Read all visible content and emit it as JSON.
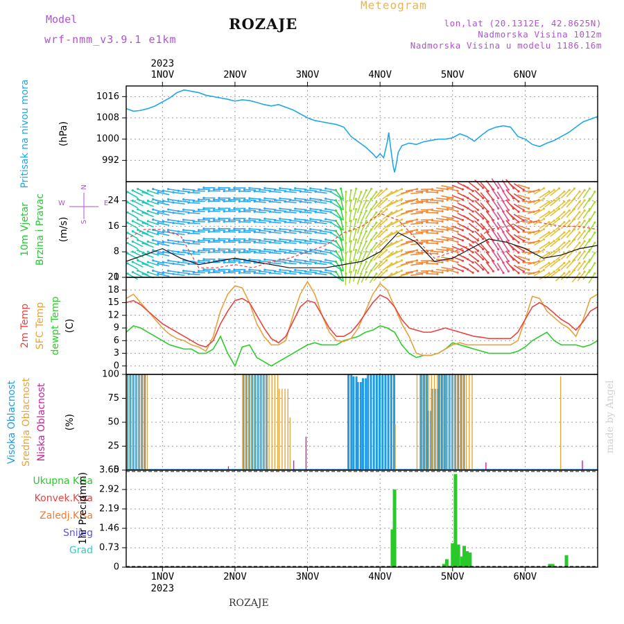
{
  "header": {
    "model_label": "Model",
    "model_name": "wrf-nmm_v3.9.1  e1km",
    "title": "ROZAJE",
    "meteogram": "Meteogram",
    "lonlat": "lon,lat (20.1312E, 42.8625N)",
    "elevation": "Nadmorska Visina 1012m",
    "model_elevation": "Nadmorska Visina u modelu 1186.16m",
    "footer_title": "ROZAJE",
    "watermark": "made by Angel"
  },
  "colors": {
    "pressure": "#1fa7e6",
    "wind_label": "#22c933",
    "temp2m": "#e8433f",
    "sfc": "#e6a23c",
    "dew": "#2ccc2a",
    "high_cloud": "#1e9be5",
    "mid_cloud": "#e8a43c",
    "low_cloud": "#cc1f9a",
    "precip_total": "#2ac92a",
    "conv": "#e8433f",
    "frozen": "#f07a32",
    "snow": "#5c56e0",
    "hail": "#3cc9c0",
    "header_purple": "#b24fd6",
    "meteogram": "#e6b45a"
  },
  "chart_data": [
    {
      "type": "line",
      "panel": "pressure",
      "labels": [
        "Pritisak na nivou mora",
        "(hPa)"
      ],
      "ylim": [
        984,
        1020
      ],
      "yticks": [
        992,
        1000,
        1008,
        1016
      ],
      "x": [
        0,
        0.1,
        0.2,
        0.3,
        0.4,
        0.5,
        0.6,
        0.65,
        0.7,
        0.8,
        0.9,
        1.0,
        1.1,
        1.2,
        1.3,
        1.4,
        1.5,
        1.6,
        1.7,
        1.8,
        1.9,
        2.0,
        2.1,
        2.2,
        2.3,
        2.4,
        2.5,
        2.6,
        2.7,
        2.8,
        2.9,
        3.0,
        3.1,
        3.2,
        3.3,
        3.4,
        3.45,
        3.5,
        3.55,
        3.6,
        3.62,
        3.65,
        3.68,
        3.7,
        3.72,
        3.75,
        3.8,
        3.9,
        4.0,
        4.1,
        4.2,
        4.3,
        4.4,
        4.5,
        4.6,
        4.7,
        4.8,
        4.9,
        5.0,
        5.1,
        5.2,
        5.3,
        5.4,
        5.5,
        5.6,
        5.7,
        5.8,
        5.9,
        6.0,
        6.1,
        6.2,
        6.3,
        6.4,
        6.5
      ],
      "series": [
        {
          "values": [
            1011.5,
            1010.5,
            1010.8,
            1011.5,
            1012.5,
            1014,
            1015.5,
            1016.5,
            1017.5,
            1018.5,
            1018,
            1017.5,
            1016.5,
            1016,
            1015.5,
            1015,
            1014.3,
            1014.8,
            1014.5,
            1013.8,
            1013,
            1012.5,
            1013,
            1012,
            1011,
            1009.5,
            1008,
            1007,
            1006.5,
            1006,
            1005.5,
            1004.5,
            1001,
            999,
            997,
            994.5,
            993,
            994.5,
            993,
            999,
            1002.5,
            996,
            990,
            987.5,
            990,
            995,
            997.5,
            998.5,
            998,
            999,
            999.5,
            1000,
            1000,
            1000.5,
            1002,
            1001,
            999.2,
            1001.5,
            1003.5,
            1004.5,
            1005,
            1004.5,
            1001,
            1000,
            998,
            997.2,
            998.5,
            999.5,
            1001,
            1002.5,
            1004.5,
            1006.5,
            1007.5,
            1008.5
          ]
        }
      ]
    },
    {
      "type": "line",
      "panel": "wind",
      "labels": [
        "10m Vjetar",
        "Brzina i Pravac",
        "(m/s)"
      ],
      "compass": [
        "N",
        "W",
        "E",
        "S"
      ],
      "ylim": [
        0,
        30
      ],
      "yticks": [
        0,
        8,
        16,
        24
      ],
      "x": [
        0,
        0.25,
        0.5,
        0.75,
        1.0,
        1.25,
        1.5,
        1.75,
        2.0,
        2.25,
        2.5,
        2.75,
        3.0,
        3.25,
        3.5,
        3.75,
        4.0,
        4.25,
        4.5,
        4.75,
        5.0,
        5.25,
        5.5,
        5.75,
        6.0,
        6.25,
        6.5
      ],
      "series": [
        {
          "name": "speed",
          "values": [
            5,
            7,
            9,
            6,
            4,
            5,
            6,
            5,
            4,
            3,
            3,
            3,
            4,
            5,
            8,
            14,
            11,
            5,
            6,
            9,
            12,
            11,
            9,
            6,
            7,
            9,
            10
          ]
        },
        {
          "name": "gust",
          "values": [
            12,
            15,
            15,
            13,
            3,
            3,
            4,
            3,
            5,
            6,
            8,
            10,
            14,
            16,
            20,
            18,
            12,
            6,
            8,
            10,
            15,
            16,
            18,
            17,
            16,
            16,
            15
          ]
        },
        {
          "name": "direction_deg",
          "values": [
            120,
            110,
            100,
            95,
            90,
            90,
            90,
            95,
            95,
            95,
            95,
            100,
            180,
            200,
            220,
            240,
            260,
            270,
            280,
            300,
            320,
            330,
            300,
            240,
            230,
            220,
            210
          ]
        }
      ]
    },
    {
      "type": "line",
      "panel": "temperature",
      "labels": [
        "2m Temp",
        "SFC Temp",
        "dewpt Temp",
        "(C)"
      ],
      "ylim": [
        -2,
        21
      ],
      "yticks": [
        0,
        3,
        6,
        9,
        12,
        15,
        18,
        21
      ],
      "x": [
        0,
        0.1,
        0.2,
        0.3,
        0.4,
        0.5,
        0.6,
        0.7,
        0.8,
        0.9,
        1.0,
        1.1,
        1.2,
        1.3,
        1.4,
        1.5,
        1.6,
        1.7,
        1.8,
        1.9,
        2.0,
        2.1,
        2.2,
        2.3,
        2.4,
        2.5,
        2.6,
        2.7,
        2.8,
        2.9,
        3.0,
        3.1,
        3.2,
        3.3,
        3.4,
        3.5,
        3.6,
        3.7,
        3.8,
        3.9,
        4.0,
        4.1,
        4.2,
        4.3,
        4.4,
        4.5,
        4.6,
        4.7,
        4.8,
        4.9,
        5.0,
        5.1,
        5.2,
        5.3,
        5.4,
        5.5,
        5.6,
        5.7,
        5.8,
        5.9,
        6.0,
        6.1,
        6.2,
        6.3,
        6.4,
        6.5
      ],
      "series": [
        {
          "name": "2m Temp",
          "values": [
            15,
            15.5,
            14.5,
            13,
            11.5,
            10,
            9,
            8,
            7,
            6,
            5,
            4.5,
            6,
            10,
            13,
            15.5,
            16,
            15,
            12,
            9,
            6.5,
            5.5,
            7,
            10.5,
            14,
            15.5,
            15,
            12,
            9,
            7,
            7,
            8,
            10,
            12.5,
            15,
            16.8,
            16,
            14,
            11,
            9,
            8.5,
            8,
            8,
            8.5,
            9,
            8.5,
            8,
            7.5,
            7,
            6.8,
            6.5,
            6.5,
            6.5,
            6.5,
            8,
            11,
            14,
            15,
            14,
            12.5,
            11,
            10,
            8.5,
            10.5,
            13,
            14
          ]
        },
        {
          "name": "SFC Temp",
          "values": [
            16,
            17,
            15,
            13,
            11,
            9,
            7.5,
            6.5,
            6,
            5,
            4.5,
            3.5,
            7,
            13,
            17,
            19,
            18.5,
            15,
            10,
            7,
            5,
            5,
            6,
            12,
            17,
            20,
            17,
            12,
            8,
            6,
            5.8,
            6.5,
            9,
            13,
            17,
            19.5,
            18,
            14,
            10,
            7,
            3,
            2.5,
            2.5,
            3,
            4,
            5,
            5.5,
            5,
            5,
            5,
            5,
            5,
            5,
            5,
            6,
            11,
            16.5,
            16,
            13,
            11.5,
            10,
            9,
            7,
            11,
            16,
            17
          ]
        },
        {
          "name": "dewpt Temp",
          "values": [
            8,
            9.5,
            9,
            8,
            7,
            6,
            5,
            4.5,
            4,
            4,
            3,
            3,
            4,
            7,
            3,
            0,
            4.5,
            5,
            2,
            1,
            0,
            1,
            2,
            3,
            4,
            5,
            5.5,
            5,
            5,
            5,
            6,
            6.5,
            7,
            8,
            8.5,
            9.5,
            9,
            8,
            5,
            3,
            2,
            2.5,
            2.5,
            3,
            4,
            5.5,
            5,
            4.5,
            4,
            3.5,
            3,
            3,
            3,
            3,
            3.5,
            4.5,
            6,
            7,
            8,
            6,
            5,
            5,
            5,
            4.5,
            5,
            6
          ]
        }
      ]
    },
    {
      "type": "bar",
      "panel": "cloud",
      "labels": [
        "Visoka Oblacnost",
        "Srednja Oblacnost",
        "Niska Oblacnost",
        "(%)"
      ],
      "ylim": [
        0,
        100
      ],
      "yticks": [
        0,
        25,
        50,
        75,
        100
      ],
      "series": [
        {
          "name": "Visoka Oblacnost",
          "segments": [
            [
              0.0,
              0.25,
              100
            ],
            [
              1.6,
              1.95,
              100
            ],
            [
              3.05,
              3.12,
              100
            ],
            [
              3.12,
              3.18,
              98
            ],
            [
              3.18,
              3.25,
              92
            ],
            [
              3.25,
              3.32,
              96
            ],
            [
              3.32,
              3.7,
              100
            ],
            [
              4.05,
              4.15,
              100
            ],
            [
              4.15,
              4.2,
              62
            ],
            [
              4.2,
              4.3,
              85
            ],
            [
              4.3,
              4.4,
              100
            ],
            [
              4.4,
              4.65,
              100
            ]
          ]
        },
        {
          "name": "Srednja Oblacnost",
          "segments": [
            [
              0.0,
              0.3,
              100
            ],
            [
              1.6,
              2.1,
              100
            ],
            [
              2.1,
              2.25,
              85
            ],
            [
              2.25,
              2.27,
              55
            ],
            [
              3.7,
              3.72,
              48
            ],
            [
              4.0,
              4.8,
              100
            ],
            [
              5.98,
              6.0,
              98
            ]
          ]
        },
        {
          "name": "Niska Oblacnost",
          "segments": [
            [
              2.47,
              2.49,
              35
            ],
            [
              1.4,
              1.42,
              4
            ],
            [
              2.3,
              2.32,
              10
            ],
            [
              4.95,
              4.97,
              8
            ],
            [
              6.28,
              6.3,
              10
            ]
          ]
        }
      ]
    },
    {
      "type": "bar",
      "panel": "precip",
      "labels": [
        "1hr Precip",
        "(mm)"
      ],
      "legend": [
        "Ukupna Kisa",
        "Konvek.Kisa",
        "Zaledj.Kisa",
        "Snijeg",
        "Grad"
      ],
      "ylim": [
        0,
        3.65
      ],
      "yticks": [
        0,
        0.73,
        1.46,
        2.19,
        2.92,
        3.65
      ],
      "x": [
        3.67,
        3.7,
        4.38,
        4.42,
        4.5,
        4.54,
        4.58,
        4.63,
        4.66,
        4.7,
        4.74,
        5.84,
        5.88,
        6.07
      ],
      "values": [
        1.42,
        2.92,
        0.12,
        0.3,
        0.9,
        3.5,
        0.85,
        0.4,
        0.8,
        0.6,
        0.55,
        0.12,
        0.12,
        0.45
      ]
    }
  ],
  "xaxis": {
    "year": "2023",
    "days": [
      "1NOV",
      "2NOV",
      "3NOV",
      "4NOV",
      "5NOV",
      "6NOV"
    ],
    "day_positions": [
      0.5,
      1.5,
      2.5,
      3.5,
      4.5,
      5.5
    ]
  }
}
